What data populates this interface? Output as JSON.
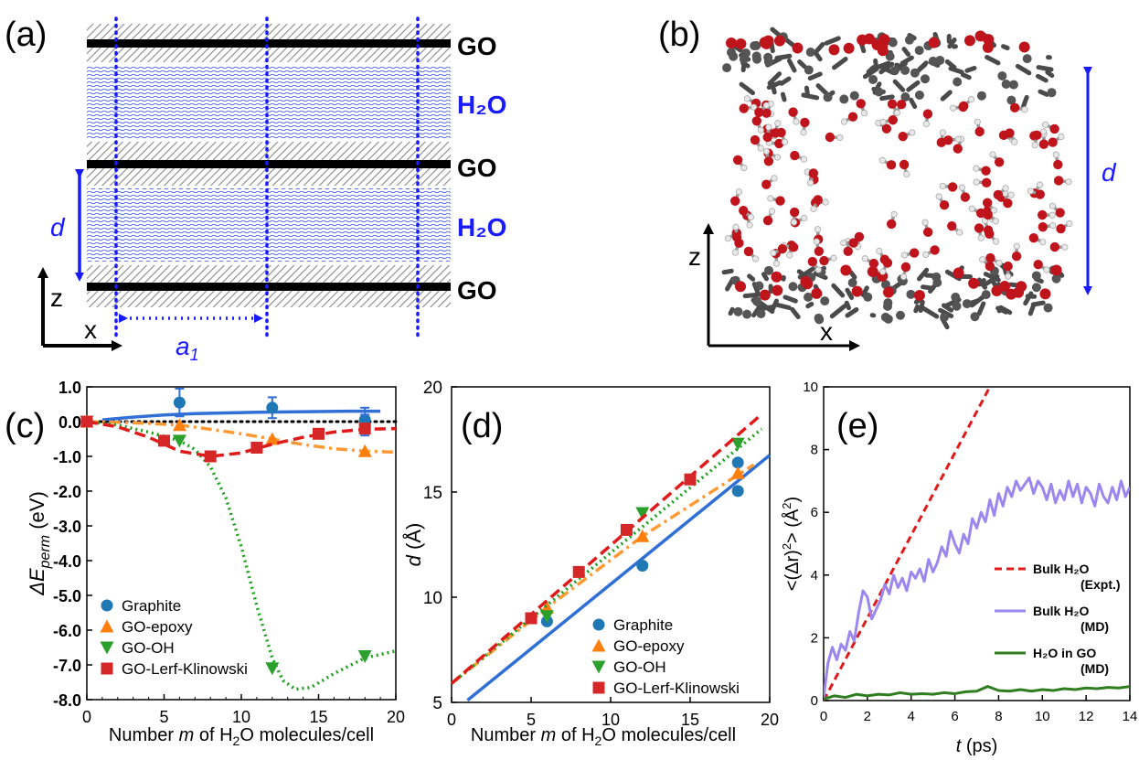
{
  "panel_a": {
    "letter": "(a)",
    "layer_labels": [
      "GO",
      "H₂O",
      "GO",
      "H₂O",
      "GO"
    ],
    "d_label": "d",
    "a1_label": "a",
    "a1_sub": "1",
    "axis_z": "z",
    "axis_x": "x",
    "colors": {
      "sheet": "#000000",
      "water": "#1f3fd6",
      "accent": "#1a1aff"
    }
  },
  "panel_b": {
    "letter": "(b)",
    "d_label": "d",
    "axis_z": "z",
    "axis_x": "x"
  },
  "chart_data": [
    {
      "panel": "(c)",
      "type": "scatter",
      "xlabel_pre": "Number ",
      "xlabel_m": "m",
      "xlabel_mid": " of H",
      "xlabel_sub": "2",
      "xlabel_post": "O molecules/cell",
      "ylabel_main": "ΔE",
      "ylabel_sub": "perm",
      "ylabel_unit": " (eV)",
      "xlim": [
        0,
        20
      ],
      "ylim": [
        -8,
        1
      ],
      "xticks": [
        "0",
        "5",
        "10",
        "15",
        "20"
      ],
      "yticks": [
        "1.0",
        "0.0",
        "-1.0",
        "-2.0",
        "-3.0",
        "-4.0",
        "-5.0",
        "-6.0",
        "-7.0",
        "-8.0"
      ],
      "series": [
        {
          "name": "Graphite",
          "color": "#1f77b4",
          "marker": "circle",
          "points": [
            [
              6,
              0.55
            ],
            [
              12,
              0.4
            ],
            [
              18,
              0.05
            ],
            [
              18,
              -0.1
            ]
          ],
          "errors": [
            0.4,
            0.3,
            0.35,
            0.3
          ],
          "fit": [
            [
              1,
              0.05
            ],
            [
              3,
              0.13
            ],
            [
              5,
              0.19
            ],
            [
              7,
              0.23
            ],
            [
              9,
              0.25
            ],
            [
              11,
              0.27
            ],
            [
              13,
              0.28
            ],
            [
              15,
              0.29
            ],
            [
              17,
              0.3
            ],
            [
              19,
              0.3
            ]
          ],
          "fit_color": "#2f6fd6",
          "fit_style": "solid"
        },
        {
          "name": "GO-epoxy",
          "color": "#ff7f0e",
          "marker": "triangle-up",
          "points": [
            [
              0,
              0
            ],
            [
              6,
              -0.1
            ],
            [
              12,
              -0.5
            ],
            [
              18,
              -0.85
            ]
          ],
          "fit": [
            [
              0,
              0
            ],
            [
              2,
              -0.02
            ],
            [
              4,
              -0.05
            ],
            [
              6,
              -0.1
            ],
            [
              8,
              -0.22
            ],
            [
              10,
              -0.35
            ],
            [
              12,
              -0.5
            ],
            [
              14,
              -0.66
            ],
            [
              16,
              -0.78
            ],
            [
              18,
              -0.85
            ],
            [
              20,
              -0.88
            ]
          ],
          "fit_color": "#ff9933",
          "fit_style": "dashdot"
        },
        {
          "name": "GO-OH",
          "color": "#2ca02c",
          "marker": "triangle-down",
          "points": [
            [
              0,
              0
            ],
            [
              6,
              -0.55
            ],
            [
              12,
              -7.1
            ],
            [
              18,
              -6.75
            ]
          ],
          "fit": [
            [
              0,
              0
            ],
            [
              2,
              -0.1
            ],
            [
              4,
              -0.3
            ],
            [
              6,
              -0.55
            ],
            [
              7,
              -0.8
            ],
            [
              8,
              -1.3
            ],
            [
              9,
              -2.2
            ],
            [
              10,
              -3.6
            ],
            [
              11,
              -5.3
            ],
            [
              12,
              -6.8
            ],
            [
              12.7,
              -7.45
            ],
            [
              13.5,
              -7.7
            ],
            [
              14.5,
              -7.65
            ],
            [
              16,
              -7.25
            ],
            [
              18,
              -6.8
            ],
            [
              20,
              -6.6
            ]
          ],
          "fit_color": "#1aa11a",
          "fit_style": "dotted"
        },
        {
          "name": "GO-Lerf-Klinowski",
          "color": "#d62728",
          "marker": "square",
          "points": [
            [
              0,
              0
            ],
            [
              5,
              -0.55
            ],
            [
              8,
              -1.0
            ],
            [
              11,
              -0.75
            ],
            [
              15,
              -0.35
            ],
            [
              18,
              -0.2
            ]
          ],
          "fit": [
            [
              0,
              0
            ],
            [
              2,
              -0.15
            ],
            [
              4,
              -0.45
            ],
            [
              6,
              -0.85
            ],
            [
              8,
              -1.0
            ],
            [
              10,
              -0.9
            ],
            [
              12,
              -0.65
            ],
            [
              14,
              -0.45
            ],
            [
              16,
              -0.3
            ],
            [
              18,
              -0.22
            ],
            [
              20,
              -0.2
            ]
          ],
          "fit_color": "#e01a1a",
          "fit_style": "dashed"
        }
      ],
      "reference_line": {
        "y": 0,
        "style": "dotted",
        "color": "#000000"
      }
    },
    {
      "panel": "(d)",
      "type": "scatter",
      "xlabel_pre": "Number ",
      "xlabel_m": "m",
      "xlabel_mid": " of H",
      "xlabel_sub": "2",
      "xlabel_post": "O molecules/cell",
      "ylabel_main": "d",
      "ylabel_unit": " (Å)",
      "xlim": [
        0,
        20
      ],
      "ylim": [
        5,
        20
      ],
      "xticks": [
        "0",
        "5",
        "10",
        "15",
        "20"
      ],
      "yticks": [
        "5",
        "10",
        "15",
        "20"
      ],
      "series": [
        {
          "name": "Graphite",
          "color": "#1f77b4",
          "marker": "circle",
          "points": [
            [
              6,
              8.85
            ],
            [
              12,
              11.5
            ],
            [
              18,
              15.05
            ],
            [
              18,
              16.4
            ]
          ],
          "fit": [
            [
              1,
              5.1
            ],
            [
              20,
              16.75
            ]
          ],
          "fit_color": "#2f6fd6",
          "fit_style": "solid"
        },
        {
          "name": "GO-epoxy",
          "color": "#ff7f0e",
          "marker": "triangle-up",
          "points": [
            [
              6,
              9.5
            ],
            [
              12,
              12.9
            ],
            [
              18,
              15.9
            ]
          ],
          "fit": [
            [
              0,
              5.9
            ],
            [
              6,
              9.5
            ],
            [
              12,
              12.9
            ],
            [
              19,
              16.3
            ]
          ],
          "fit_color": "#ff9933",
          "fit_style": "dashdot"
        },
        {
          "name": "GO-OH",
          "color": "#2ca02c",
          "marker": "triangle-down",
          "points": [
            [
              6,
              9.1
            ],
            [
              12,
              14.0
            ],
            [
              18,
              17.3
            ]
          ],
          "fit": [
            [
              0,
              5.9
            ],
            [
              19.5,
              18.0
            ]
          ],
          "fit_color": "#1aa11a",
          "fit_style": "dotted"
        },
        {
          "name": "GO-Lerf-Klinowski",
          "color": "#d62728",
          "marker": "square",
          "points": [
            [
              5,
              9.0
            ],
            [
              8,
              11.2
            ],
            [
              11,
              13.2
            ],
            [
              15,
              15.6
            ]
          ],
          "fit": [
            [
              0,
              5.9
            ],
            [
              19.5,
              18.7
            ]
          ],
          "fit_color": "#e01a1a",
          "fit_style": "dashed"
        }
      ]
    },
    {
      "panel": "(e)",
      "type": "line",
      "xlabel_t": "t",
      "xlabel_unit": " (ps)",
      "ylabel_text": "<(Δr)",
      "ylabel_sup": "2",
      "ylabel_post": "> (Å",
      "ylabel_sup2": "2",
      "ylabel_end": ")",
      "xlim": [
        0,
        14
      ],
      "ylim": [
        0,
        10
      ],
      "xticks": [
        "0",
        "2",
        "4",
        "6",
        "8",
        "10",
        "12",
        "14"
      ],
      "yticks": [
        "0",
        "2",
        "4",
        "6",
        "8",
        "10"
      ],
      "series": [
        {
          "name_main": "Bulk H₂O",
          "name_sub": "(Expt.)",
          "color": "#e01a1a",
          "style": "dashed",
          "x": [
            0,
            7.6
          ],
          "y": [
            0,
            10
          ]
        },
        {
          "name_main": "Bulk H₂O",
          "name_sub": "(MD)",
          "color": "#9b87ee",
          "style": "solid",
          "x": [
            0,
            0.2,
            0.4,
            0.6,
            0.8,
            1.0,
            1.2,
            1.4,
            1.6,
            1.8,
            2.0,
            2.2,
            2.4,
            2.6,
            2.8,
            3.0,
            3.2,
            3.4,
            3.6,
            3.8,
            4.0,
            4.2,
            4.4,
            4.6,
            4.8,
            5.0,
            5.2,
            5.4,
            5.6,
            5.8,
            6.0,
            6.2,
            6.4,
            6.6,
            6.8,
            7.0,
            7.2,
            7.4,
            7.6,
            7.8,
            8.0,
            8.2,
            8.4,
            8.6,
            8.8,
            9.0,
            9.2,
            9.4,
            9.6,
            9.8,
            10.0,
            10.2,
            10.4,
            10.6,
            10.8,
            11.0,
            11.2,
            11.4,
            11.6,
            11.8,
            12.0,
            12.2,
            12.4,
            12.6,
            12.8,
            13.0,
            13.2,
            13.4,
            13.6,
            13.8,
            14.0
          ],
          "y": [
            0.1,
            1.2,
            1.7,
            1.3,
            1.8,
            1.6,
            2.2,
            1.9,
            2.8,
            3.5,
            3.3,
            2.6,
            2.9,
            3.2,
            3.7,
            3.4,
            4.0,
            3.6,
            3.9,
            3.5,
            4.1,
            3.9,
            4.2,
            3.8,
            4.5,
            4.1,
            4.4,
            4.9,
            4.6,
            5.4,
            5.0,
            4.7,
            5.3,
            5.0,
            5.8,
            5.5,
            6.0,
            5.7,
            6.4,
            5.9,
            6.6,
            6.2,
            6.8,
            6.5,
            7.0,
            6.7,
            6.9,
            7.1,
            6.6,
            7.0,
            6.8,
            6.4,
            6.9,
            6.3,
            6.7,
            6.4,
            7.0,
            6.5,
            6.9,
            6.3,
            6.8,
            6.6,
            6.2,
            6.9,
            6.5,
            6.3,
            6.8,
            6.4,
            7.0,
            6.5,
            6.8
          ]
        },
        {
          "name_main": "H₂O in GO",
          "name_sub": "(MD)",
          "color": "#2e7d1e",
          "style": "solid",
          "x": [
            0,
            0.5,
            1,
            1.5,
            2,
            2.5,
            3,
            3.5,
            4,
            4.5,
            5,
            5.5,
            6,
            6.5,
            7,
            7.5,
            8,
            8.5,
            9,
            9.5,
            10,
            10.5,
            11,
            11.5,
            12,
            12.5,
            13,
            13.5,
            14
          ],
          "y": [
            0.05,
            0.15,
            0.1,
            0.2,
            0.15,
            0.2,
            0.18,
            0.25,
            0.2,
            0.22,
            0.2,
            0.25,
            0.22,
            0.28,
            0.3,
            0.45,
            0.32,
            0.3,
            0.35,
            0.3,
            0.35,
            0.32,
            0.38,
            0.35,
            0.4,
            0.38,
            0.42,
            0.4,
            0.45
          ]
        }
      ]
    }
  ],
  "panel_letters": {
    "c": "(c)",
    "d": "(d)",
    "e": "(e)"
  }
}
